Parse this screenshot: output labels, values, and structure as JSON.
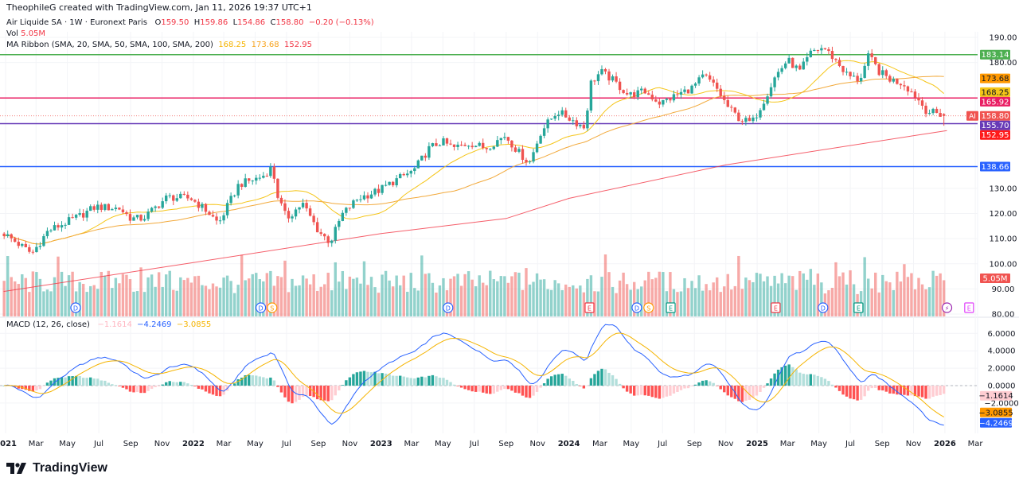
{
  "header": {
    "attribution": "TheophileG created with TradingView.com, Jan 11, 2026 19:37 UTC+1"
  },
  "legend": {
    "symbol": "Air Liquide SA · 1W · Euronext Paris",
    "o_label": "O",
    "o": "159.50",
    "h_label": "H",
    "h": "159.86",
    "l_label": "L",
    "l": "154.86",
    "c_label": "C",
    "c": "158.80",
    "change": "−0.20 (−0.13%)",
    "vol_label": "Vol",
    "vol": "5.05M",
    "ma_label": "MA Ribbon (SMA, 20, SMA, 50, SMA, 100, SMA, 200)",
    "ma_values": [
      "168.25",
      "173.68",
      "152.95"
    ]
  },
  "macd_legend": {
    "label": "MACD (12, 26, close)",
    "values": [
      "−1.1614",
      "−4.2469",
      "−3.0855"
    ]
  },
  "colors": {
    "up": "#26a69a",
    "down": "#ef5350",
    "sma20": "#f5c518",
    "sma50": "#f2a93b",
    "sma200": "#f23645",
    "macd": "#2962ff",
    "signal": "#f5b400"
  },
  "branding": {
    "logo_text": "TradingView"
  },
  "chart_data": {
    "type": "candlestick",
    "interval": "1W",
    "price_axis": {
      "ticks": [
        "190.00",
        "180.00",
        "130.00",
        "120.00",
        "110.00",
        "100.00",
        "90.00",
        "80.00"
      ],
      "ylim": [
        80,
        190
      ]
    },
    "close_path": [
      [
        "2020-12-29",
        112
      ],
      [
        "2021-02-21",
        104
      ],
      [
        "2021-03-24",
        113
      ],
      [
        "2021-05-25",
        119
      ],
      [
        "2021-06-25",
        122.7
      ],
      [
        "2021-08-10",
        122
      ],
      [
        "2021-09-02",
        118
      ],
      [
        "2021-09-25",
        118
      ],
      [
        "2021-11-11",
        126.5
      ],
      [
        "2021-12-27",
        126
      ],
      [
        "2022-01-27",
        121
      ],
      [
        "2022-02-19",
        116
      ],
      [
        "2022-03-30",
        131.5
      ],
      [
        "2022-05-15",
        134.7
      ],
      [
        "2022-06-03",
        138.5
      ],
      [
        "2022-06-15",
        126
      ],
      [
        "2022-07-01",
        118
      ],
      [
        "2022-08-01",
        124
      ],
      [
        "2022-09-01",
        113
      ],
      [
        "2022-09-24",
        108.5
      ],
      [
        "2022-10-17",
        119.5
      ],
      [
        "2022-11-17",
        126
      ],
      [
        "2022-12-26",
        129
      ],
      [
        "2023-02-02",
        133.7
      ],
      [
        "2023-03-05",
        137
      ],
      [
        "2023-04-05",
        146
      ],
      [
        "2023-04-29",
        148.6
      ],
      [
        "2023-05-22",
        146
      ],
      [
        "2023-06-22",
        148
      ],
      [
        "2023-07-23",
        146
      ],
      [
        "2023-08-30",
        151
      ],
      [
        "2023-09-23",
        144.8
      ],
      [
        "2023-10-16",
        140
      ],
      [
        "2023-11-08",
        152.7
      ],
      [
        "2023-12-09",
        160.6
      ],
      [
        "2024-01-01",
        158
      ],
      [
        "2024-02-01",
        154
      ],
      [
        "2024-02-12",
        171.7
      ],
      [
        "2024-03-03",
        176.4
      ],
      [
        "2024-03-26",
        173
      ],
      [
        "2024-04-26",
        167
      ],
      [
        "2024-05-27",
        168.5
      ],
      [
        "2024-06-27",
        163.8
      ],
      [
        "2024-07-28",
        167
      ],
      [
        "2024-08-28",
        170
      ],
      [
        "2024-09-20",
        174.8
      ],
      [
        "2024-10-13",
        170
      ],
      [
        "2024-11-06",
        162
      ],
      [
        "2024-11-29",
        157.4
      ],
      [
        "2024-12-22",
        156
      ],
      [
        "2025-01-14",
        165
      ],
      [
        "2025-02-06",
        174.8
      ],
      [
        "2025-03-01",
        181
      ],
      [
        "2025-03-25",
        176.4
      ],
      [
        "2025-04-17",
        184.3
      ],
      [
        "2025-05-10",
        186
      ],
      [
        "2025-06-02",
        181
      ],
      [
        "2025-06-26",
        174.8
      ],
      [
        "2025-07-19",
        173
      ],
      [
        "2025-08-06",
        182.7
      ],
      [
        "2025-08-26",
        176.4
      ],
      [
        "2025-09-19",
        173
      ],
      [
        "2025-10-12",
        171.7
      ],
      [
        "2025-11-04",
        167
      ],
      [
        "2025-11-27",
        160.6
      ],
      [
        "2026-01-05",
        158.8
      ]
    ],
    "last_candle": {
      "open": 159.5,
      "high": 159.86,
      "low": 154.86,
      "close": 158.8
    },
    "sma200": [
      [
        "2020-12-28",
        89
      ],
      [
        "2022-01-01",
        100.5
      ],
      [
        "2023-01-01",
        112
      ],
      [
        "2023-09-01",
        118
      ],
      [
        "2024-01-01",
        126
      ],
      [
        "2024-11-01",
        139.3
      ],
      [
        "2026-01-05",
        152.95
      ]
    ],
    "price_tags": [
      {
        "value": 183.14,
        "label": "183.14",
        "color": "#4caf50",
        "line": true
      },
      {
        "value": 173.68,
        "label": "173.68",
        "color": "#ff9800",
        "line": false
      },
      {
        "value": 168.25,
        "label": "168.25",
        "color": "#f5c518",
        "line": false
      },
      {
        "value": 165.92,
        "label": "165.92",
        "color": "#e91e63",
        "line": true
      },
      {
        "value": 158.8,
        "label": "158.80",
        "color": "#f05350",
        "line": false,
        "symbol": "AI"
      },
      {
        "value": 155.7,
        "label": "155.70",
        "color": "#673ab7",
        "line": true
      },
      {
        "value": 152.95,
        "label": "152.95",
        "color": "#ff1a1a",
        "line": false
      },
      {
        "value": 138.66,
        "label": "138.66",
        "color": "#2962ff",
        "line": true
      }
    ],
    "volume_tag": {
      "label": "5.05M",
      "color": "#f05350"
    },
    "macd": {
      "ticks": [
        "6.0000",
        "4.0000",
        "2.0000",
        "0.0000",
        "−2.0000"
      ],
      "tick_values": [
        6,
        4,
        2,
        0,
        -2
      ],
      "tags": [
        {
          "value": -1.1614,
          "label": "−1.1614",
          "color": "#ffcdd2"
        },
        {
          "value": -3.0855,
          "label": "−3.0855",
          "color": "#ff9800"
        },
        {
          "value": -4.2469,
          "label": "−4.2469",
          "color": "#2962ff"
        }
      ]
    },
    "time_ticks": [
      [
        "2021",
        "2021-01-01",
        true
      ],
      [
        "Mar",
        "2021-03-01"
      ],
      [
        "May",
        "2021-05-01"
      ],
      [
        "Jul",
        "2021-07-01"
      ],
      [
        "Sep",
        "2021-09-01"
      ],
      [
        "Nov",
        "2021-11-01"
      ],
      [
        "2022",
        "2022-01-01",
        true
      ],
      [
        "Mar",
        "2022-03-01"
      ],
      [
        "May",
        "2022-05-01"
      ],
      [
        "Jul",
        "2022-07-01"
      ],
      [
        "Sep",
        "2022-09-01"
      ],
      [
        "Nov",
        "2022-11-01"
      ],
      [
        "2023",
        "2023-01-01",
        true
      ],
      [
        "Mar",
        "2023-03-01"
      ],
      [
        "May",
        "2023-05-01"
      ],
      [
        "Jul",
        "2023-07-01"
      ],
      [
        "Sep",
        "2023-09-01"
      ],
      [
        "Nov",
        "2023-11-01"
      ],
      [
        "2024",
        "2024-01-01",
        true
      ],
      [
        "Mar",
        "2024-03-01"
      ],
      [
        "May",
        "2024-05-01"
      ],
      [
        "Jul",
        "2024-07-01"
      ],
      [
        "Sep",
        "2024-09-01"
      ],
      [
        "Nov",
        "2024-11-01"
      ],
      [
        "2025",
        "2025-01-01",
        true
      ],
      [
        "Mar",
        "2025-03-01"
      ],
      [
        "May",
        "2025-05-01"
      ],
      [
        "Jul",
        "2025-07-01"
      ],
      [
        "Sep",
        "2025-09-01"
      ],
      [
        "Nov",
        "2025-11-01"
      ],
      [
        "2026",
        "2026-01-01",
        true
      ],
      [
        "Mar",
        "2026-03-01"
      ]
    ],
    "events": [
      {
        "type": "D",
        "date": "2021-05-17"
      },
      {
        "type": "D",
        "date": "2022-05-12"
      },
      {
        "type": "S",
        "date": "2022-06-03"
      },
      {
        "type": "D",
        "date": "2023-05-11"
      },
      {
        "type": "E-red",
        "date": "2024-02-10"
      },
      {
        "type": "D",
        "date": "2024-05-12"
      },
      {
        "type": "S",
        "date": "2024-06-04"
      },
      {
        "type": "E-green",
        "date": "2024-07-17"
      },
      {
        "type": "E-red",
        "date": "2025-02-06"
      },
      {
        "type": "D",
        "date": "2025-05-09"
      },
      {
        "type": "E-green",
        "date": "2025-07-17"
      },
      {
        "type": "flash",
        "date": "2026-01-05"
      },
      {
        "type": "E-future",
        "date": "2026-02-17"
      }
    ]
  }
}
